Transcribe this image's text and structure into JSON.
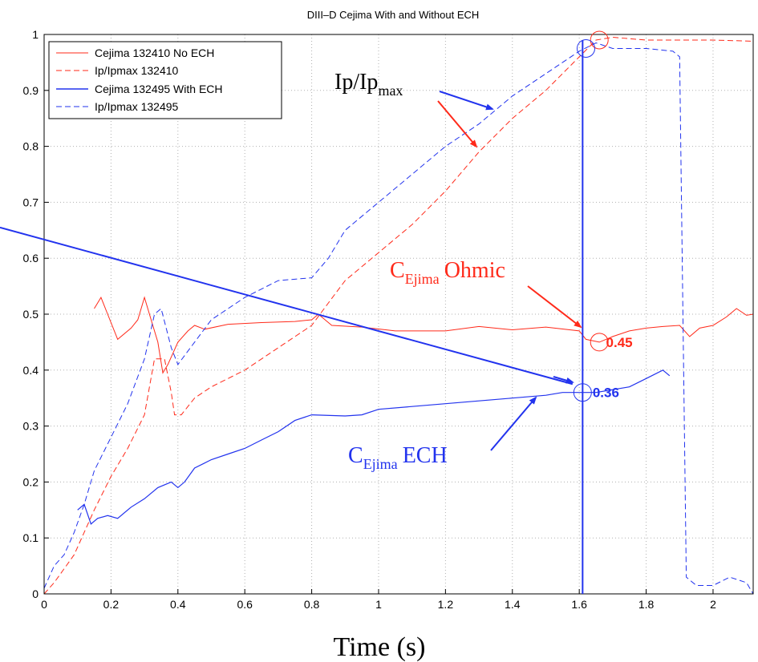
{
  "chart_data": {
    "type": "line",
    "title": "DIII–D Cejima With and Without ECH",
    "xlabel": "Time (s)",
    "ylabel": "",
    "xlim": [
      0,
      2.12
    ],
    "ylim": [
      0,
      1
    ],
    "grid": true,
    "legend_position": "top-left",
    "x_ticks": [
      "0",
      "0.2",
      "0.4",
      "0.6",
      "0.8",
      "1",
      "1.2",
      "1.4",
      "1.6",
      "1.8",
      "2"
    ],
    "y_ticks": [
      "0",
      "0.1",
      "0.2",
      "0.3",
      "0.4",
      "0.5",
      "0.6",
      "0.7",
      "0.8",
      "0.9",
      "1"
    ],
    "series": [
      {
        "name": "Cejima 132410 No ECH",
        "color": "#ff2a1a",
        "style": "solid",
        "points": [
          [
            0.15,
            0.51
          ],
          [
            0.17,
            0.53
          ],
          [
            0.19,
            0.5
          ],
          [
            0.22,
            0.455
          ],
          [
            0.26,
            0.475
          ],
          [
            0.28,
            0.49
          ],
          [
            0.3,
            0.53
          ],
          [
            0.32,
            0.49
          ],
          [
            0.34,
            0.45
          ],
          [
            0.355,
            0.395
          ],
          [
            0.37,
            0.41
          ],
          [
            0.4,
            0.45
          ],
          [
            0.43,
            0.47
          ],
          [
            0.45,
            0.48
          ],
          [
            0.48,
            0.473
          ],
          [
            0.55,
            0.482
          ],
          [
            0.65,
            0.485
          ],
          [
            0.75,
            0.487
          ],
          [
            0.8,
            0.49
          ],
          [
            0.82,
            0.5
          ],
          [
            0.86,
            0.48
          ],
          [
            0.95,
            0.477
          ],
          [
            1.05,
            0.47
          ],
          [
            1.2,
            0.47
          ],
          [
            1.3,
            0.478
          ],
          [
            1.4,
            0.472
          ],
          [
            1.5,
            0.477
          ],
          [
            1.6,
            0.47
          ],
          [
            1.62,
            0.455
          ],
          [
            1.66,
            0.45
          ],
          [
            1.7,
            0.46
          ],
          [
            1.75,
            0.47
          ],
          [
            1.8,
            0.475
          ],
          [
            1.85,
            0.478
          ],
          [
            1.9,
            0.48
          ],
          [
            1.93,
            0.46
          ],
          [
            1.96,
            0.475
          ],
          [
            2.0,
            0.48
          ],
          [
            2.04,
            0.495
          ],
          [
            2.07,
            0.51
          ],
          [
            2.1,
            0.498
          ],
          [
            2.12,
            0.5
          ]
        ]
      },
      {
        "name": "Ip/Ipmax 132410",
        "color": "#ff2a1a",
        "style": "dashed",
        "points": [
          [
            0.0,
            0.0
          ],
          [
            0.03,
            0.02
          ],
          [
            0.06,
            0.045
          ],
          [
            0.09,
            0.07
          ],
          [
            0.12,
            0.11
          ],
          [
            0.15,
            0.15
          ],
          [
            0.2,
            0.21
          ],
          [
            0.25,
            0.26
          ],
          [
            0.3,
            0.32
          ],
          [
            0.33,
            0.42
          ],
          [
            0.36,
            0.42
          ],
          [
            0.38,
            0.36
          ],
          [
            0.39,
            0.32
          ],
          [
            0.41,
            0.32
          ],
          [
            0.45,
            0.35
          ],
          [
            0.5,
            0.37
          ],
          [
            0.6,
            0.4
          ],
          [
            0.7,
            0.44
          ],
          [
            0.8,
            0.48
          ],
          [
            0.85,
            0.52
          ],
          [
            0.9,
            0.56
          ],
          [
            1.0,
            0.61
          ],
          [
            1.1,
            0.66
          ],
          [
            1.2,
            0.72
          ],
          [
            1.3,
            0.79
          ],
          [
            1.4,
            0.85
          ],
          [
            1.5,
            0.9
          ],
          [
            1.6,
            0.96
          ],
          [
            1.65,
            0.99
          ],
          [
            1.7,
            0.995
          ],
          [
            1.8,
            0.99
          ],
          [
            1.9,
            0.99
          ],
          [
            2.0,
            0.99
          ],
          [
            2.12,
            0.988
          ]
        ]
      },
      {
        "name": "Cejima 132495 With ECH",
        "color": "#2233ee",
        "style": "solid",
        "points": [
          [
            0.1,
            0.15
          ],
          [
            0.12,
            0.16
          ],
          [
            0.14,
            0.125
          ],
          [
            0.16,
            0.135
          ],
          [
            0.19,
            0.14
          ],
          [
            0.22,
            0.135
          ],
          [
            0.26,
            0.155
          ],
          [
            0.3,
            0.17
          ],
          [
            0.34,
            0.19
          ],
          [
            0.38,
            0.2
          ],
          [
            0.4,
            0.19
          ],
          [
            0.42,
            0.2
          ],
          [
            0.45,
            0.225
          ],
          [
            0.5,
            0.24
          ],
          [
            0.55,
            0.25
          ],
          [
            0.6,
            0.26
          ],
          [
            0.65,
            0.275
          ],
          [
            0.7,
            0.29
          ],
          [
            0.75,
            0.31
          ],
          [
            0.8,
            0.32
          ],
          [
            0.9,
            0.318
          ],
          [
            0.95,
            0.32
          ],
          [
            1.0,
            0.33
          ],
          [
            1.1,
            0.335
          ],
          [
            1.2,
            0.34
          ],
          [
            1.3,
            0.345
          ],
          [
            1.4,
            0.35
          ],
          [
            1.5,
            0.355
          ],
          [
            1.55,
            0.36
          ],
          [
            1.6,
            0.36
          ],
          [
            1.65,
            0.36
          ],
          [
            1.7,
            0.365
          ],
          [
            1.75,
            0.37
          ],
          [
            1.8,
            0.385
          ],
          [
            1.85,
            0.4
          ],
          [
            1.87,
            0.39
          ]
        ]
      },
      {
        "name": "Ip/Ipmax 132495",
        "color": "#2233ee",
        "style": "dashed",
        "points": [
          [
            0.0,
            0.01
          ],
          [
            0.03,
            0.05
          ],
          [
            0.06,
            0.07
          ],
          [
            0.09,
            0.11
          ],
          [
            0.12,
            0.16
          ],
          [
            0.15,
            0.22
          ],
          [
            0.2,
            0.28
          ],
          [
            0.25,
            0.34
          ],
          [
            0.3,
            0.42
          ],
          [
            0.33,
            0.5
          ],
          [
            0.35,
            0.51
          ],
          [
            0.38,
            0.44
          ],
          [
            0.4,
            0.41
          ],
          [
            0.45,
            0.45
          ],
          [
            0.5,
            0.49
          ],
          [
            0.6,
            0.53
          ],
          [
            0.7,
            0.56
          ],
          [
            0.8,
            0.565
          ],
          [
            0.85,
            0.6
          ],
          [
            0.9,
            0.65
          ],
          [
            1.0,
            0.7
          ],
          [
            1.1,
            0.75
          ],
          [
            1.2,
            0.8
          ],
          [
            1.3,
            0.84
          ],
          [
            1.4,
            0.89
          ],
          [
            1.5,
            0.93
          ],
          [
            1.6,
            0.97
          ],
          [
            1.65,
            0.985
          ],
          [
            1.7,
            0.975
          ],
          [
            1.8,
            0.975
          ],
          [
            1.88,
            0.97
          ],
          [
            1.9,
            0.96
          ],
          [
            1.91,
            0.5
          ],
          [
            1.92,
            0.03
          ],
          [
            1.95,
            0.015
          ],
          [
            2.0,
            0.015
          ],
          [
            2.05,
            0.03
          ],
          [
            2.1,
            0.02
          ],
          [
            2.12,
            0.0
          ]
        ]
      }
    ],
    "annotations": {
      "ip_label_main": "Ip/Ip",
      "ip_label_sub": "max",
      "ohmic_c": "C",
      "ohmic_sub": "Ejima",
      "ohmic_text": "Ohmic",
      "ech_c": "C",
      "ech_sub": "Ejima",
      "ech_text": "ECH",
      "value_ohmic": "0.45",
      "value_ech": "0.36"
    },
    "colors": {
      "red": "#ff2a1a",
      "blue": "#2233ee",
      "grid": "#b0b0b0"
    }
  }
}
